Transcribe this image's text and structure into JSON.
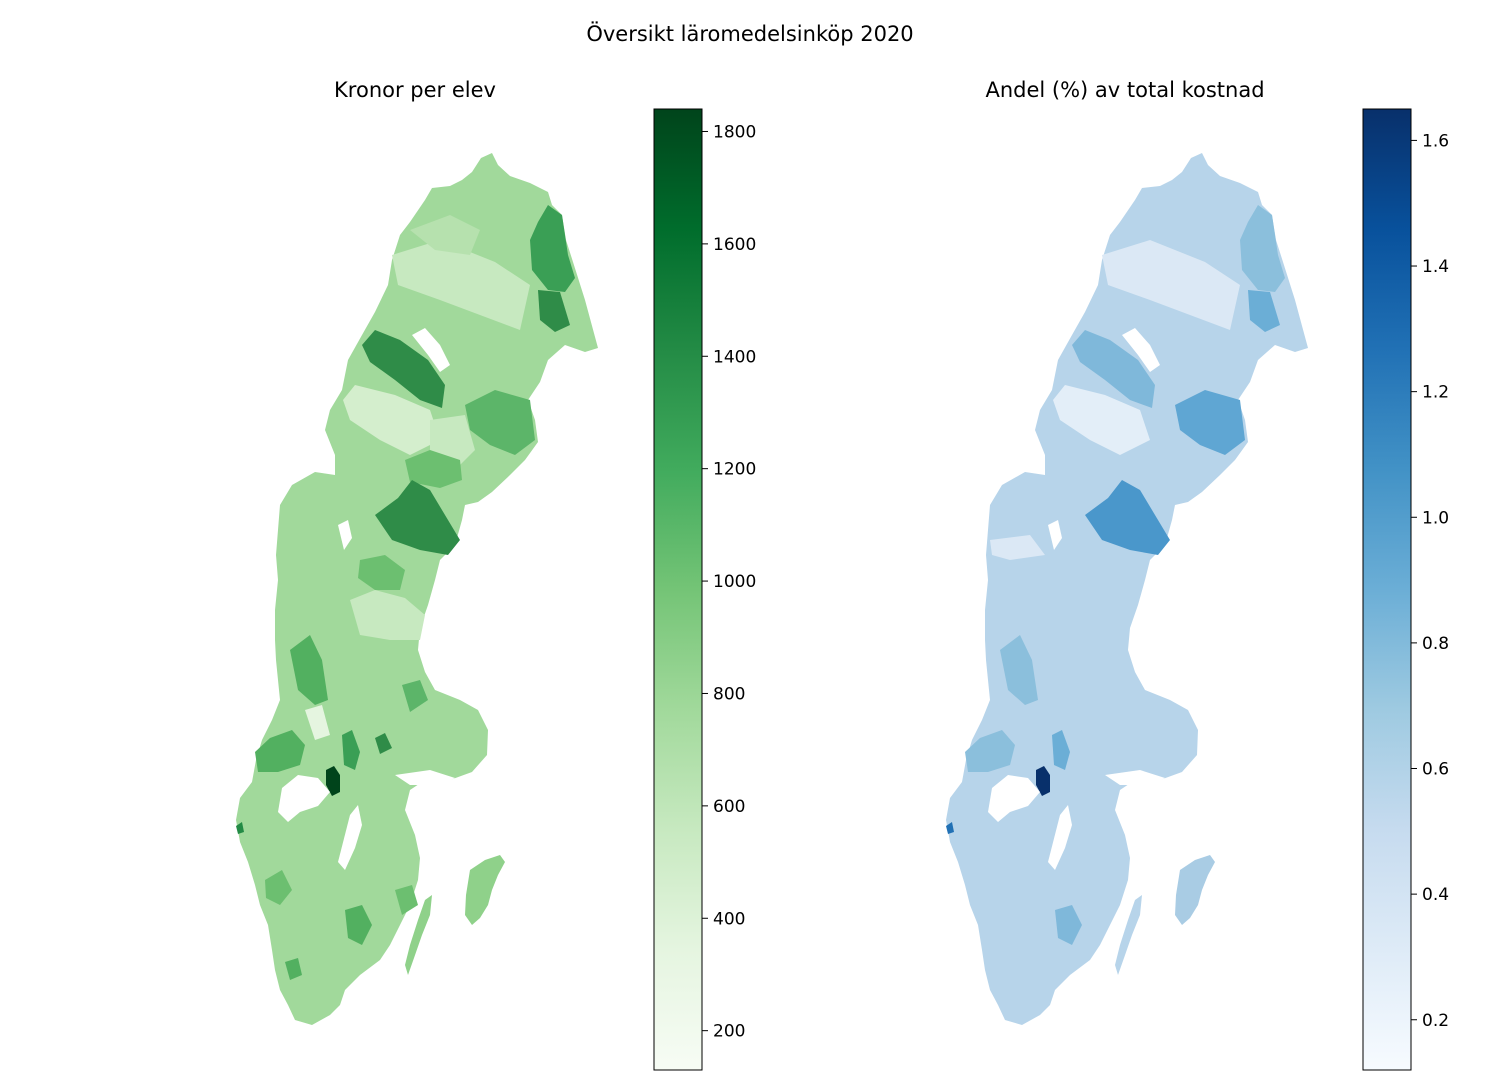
{
  "figure": {
    "title": "Översikt läromedelsinköp 2020"
  },
  "maps": [
    {
      "title": "Kronor per elev",
      "colormap": "Greens",
      "colorbar": {
        "min": 130,
        "max": 1840,
        "ticks": [
          200,
          400,
          600,
          800,
          1000,
          1200,
          1400,
          1600,
          1800
        ]
      },
      "colors": {
        "low": "#f7fcf5",
        "mid": "#74c476",
        "high": "#00441b",
        "base": "#a1d99b"
      }
    },
    {
      "title": "Andel (%) av total kostnad",
      "colormap": "Blues",
      "colorbar": {
        "min": 0.12,
        "max": 1.65,
        "ticks": [
          0.2,
          0.4,
          0.6,
          0.8,
          1.0,
          1.2,
          1.4,
          1.6
        ],
        "tick_labels": [
          "0.2",
          "0.4",
          "0.6",
          "0.8",
          "1.0",
          "1.2",
          "1.4",
          "1.6"
        ]
      },
      "colors": {
        "low": "#f7fbff",
        "mid": "#6baed6",
        "high": "#08306b",
        "base": "#b7d4ea"
      }
    }
  ]
}
